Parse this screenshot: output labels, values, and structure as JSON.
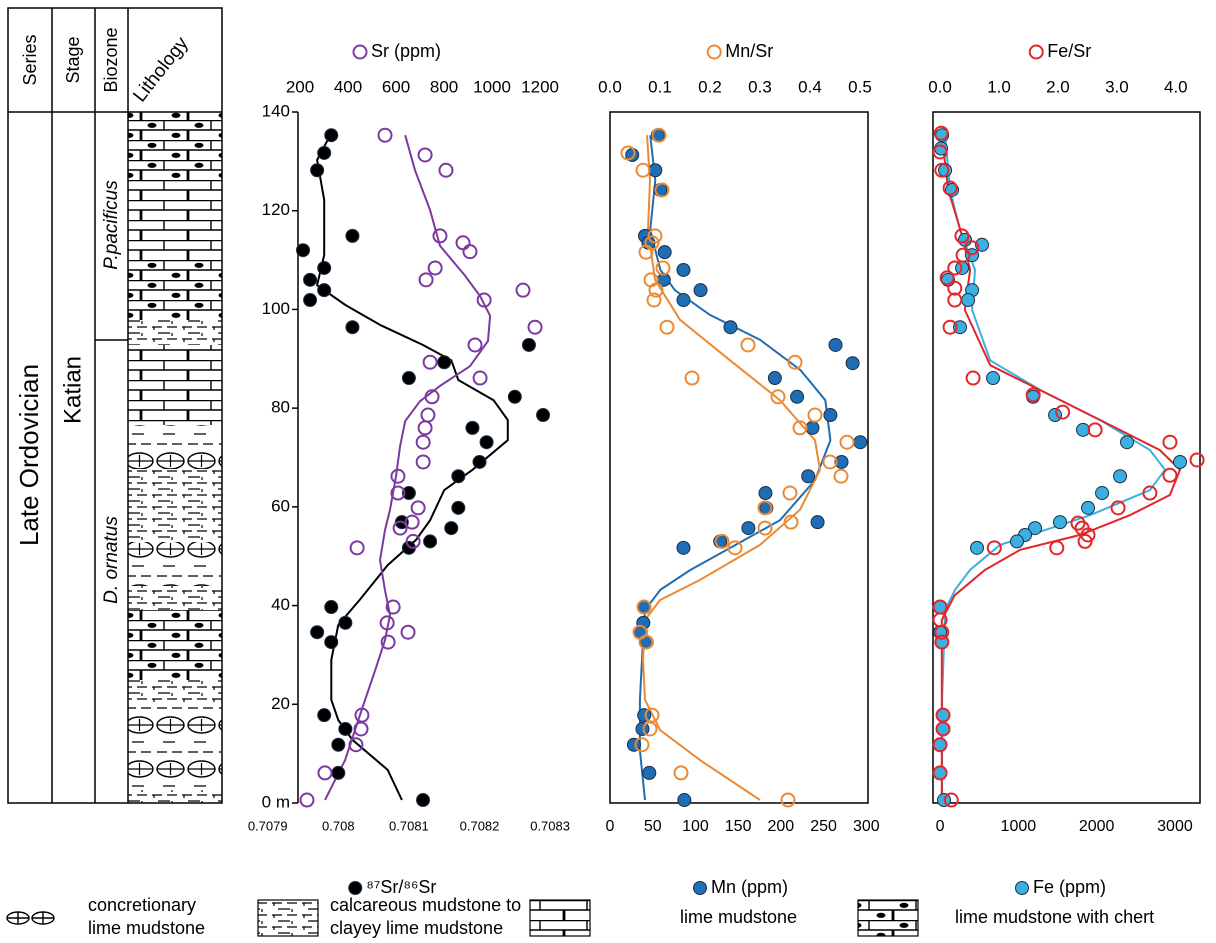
{
  "column": {
    "headers": [
      "Series",
      "Stage",
      "Biozone",
      "Lithology"
    ],
    "series": "Late Ordovician",
    "stage": "Katian",
    "biozones": [
      "P.pacificus",
      "D. ornatus"
    ]
  },
  "lithology_legend": [
    [
      "concretionary",
      "lime mudstone"
    ],
    [
      "calcareous mudstone to",
      "clayey lime mudstone"
    ],
    [
      "lime mudstone"
    ],
    [
      "lime mudstone with chert"
    ]
  ],
  "chart_data": [
    {
      "type": "scatter",
      "ylim": [
        0,
        140
      ],
      "yticks": [
        {
          "value": 0,
          "label": "0 m"
        },
        20,
        40,
        60,
        80,
        100,
        120,
        140
      ],
      "xlim": [
        0.707882,
        0.708314
      ],
      "xticks": [
        0.7079,
        0.708,
        0.7081,
        0.7082,
        0.7083
      ],
      "x2lim": [
        12.5,
        1283
      ],
      "x2ticks": [
        200,
        400,
        600,
        800,
        1000,
        1200
      ],
      "frame": false,
      "series": [
        {
          "name": "⁸⁷Sr/⁸⁶Sr",
          "color": "#000000",
          "marker": "filled",
          "x": [
            0.70799,
            0.70798,
            0.70797,
            0.70795,
            0.70802,
            0.70796,
            0.70798,
            0.70798,
            0.70796,
            0.70802,
            0.70827,
            0.70815,
            0.7081,
            0.70825,
            0.70829,
            0.70819,
            0.70821,
            0.7082,
            0.70817,
            0.7081,
            0.70817,
            0.70809,
            0.70816,
            0.70813,
            0.7081,
            0.70799,
            0.70801,
            0.70797,
            0.70799,
            0.70798,
            0.70801,
            0.708,
            0.708,
            0.70812
          ],
          "y": [
            135.3,
            131.7,
            128.2,
            112.0,
            114.9,
            106.0,
            108.4,
            103.9,
            101.9,
            96.4,
            92.8,
            89.3,
            86.1,
            82.3,
            78.6,
            76.0,
            73.1,
            69.1,
            66.2,
            62.8,
            59.8,
            56.9,
            55.7,
            53.0,
            51.7,
            39.7,
            36.5,
            34.6,
            32.6,
            17.8,
            15.0,
            11.8,
            6.1,
            0.6
          ]
        },
        {
          "color": "#000000",
          "marker": "line",
          "x": [
            0.70799,
            0.70797,
            0.70798,
            0.70798,
            0.70797,
            0.70801,
            0.70806,
            0.70812,
            0.70816,
            0.70817,
            0.70822,
            0.70824,
            0.70824,
            0.70819,
            0.70815,
            0.70813,
            0.70811,
            0.70807,
            0.70803,
            0.708,
            0.70799,
            0.70799,
            0.708,
            0.70802,
            0.70807,
            0.70809
          ],
          "y": [
            135.7,
            130.3,
            122.2,
            111.0,
            104.9,
            100.9,
            96.8,
            92.8,
            89.7,
            85.7,
            81.6,
            77.6,
            73.5,
            67.5,
            63.4,
            57.3,
            53.3,
            48.2,
            41.1,
            36.1,
            29.0,
            20.9,
            16.8,
            12.8,
            6.7,
            0.6
          ]
        },
        {
          "name": "Sr (ppm)",
          "color": "#7a3aa0",
          "axis": "x2",
          "marker": "open",
          "x": [
            554,
            721,
            808,
            783,
            879,
            908,
            763,
            725,
            967,
            1129,
            1179,
            929,
            742,
            950,
            750,
            733,
            721,
            713,
            713,
            608,
            608,
            692,
            667,
            617,
            671,
            438,
            588,
            563,
            650,
            567,
            458,
            454,
            433,
            304,
            229
          ],
          "y": [
            135.3,
            131.3,
            128.2,
            114.9,
            113.5,
            111.7,
            108.4,
            106.0,
            101.9,
            103.9,
            96.4,
            92.8,
            89.3,
            86.1,
            82.3,
            78.6,
            76.0,
            73.1,
            69.1,
            66.2,
            62.8,
            59.8,
            56.9,
            55.7,
            53.0,
            51.7,
            39.7,
            36.5,
            34.6,
            32.6,
            17.8,
            15.0,
            11.8,
            6.1,
            0.6
          ]
        },
        {
          "color": "#7a3aa0",
          "axis": "x2",
          "marker": "line",
          "x": [
            638,
            679,
            742,
            783,
            888,
            950,
            992,
            983,
            908,
            783,
            700,
            638,
            617,
            600,
            575,
            554,
            533,
            554,
            575,
            554,
            513,
            471,
            429,
            388,
            304
          ],
          "y": [
            135.3,
            128.2,
            120.1,
            112.9,
            106.8,
            102.7,
            98.7,
            93.6,
            88.5,
            84.5,
            81.4,
            77.4,
            72.3,
            66.2,
            59.4,
            55.3,
            49.2,
            43.1,
            38.1,
            33.0,
            26.9,
            20.9,
            14.8,
            8.7,
            0.6
          ]
        }
      ]
    },
    {
      "type": "scatter",
      "ylim": [
        0,
        140
      ],
      "xlim": [
        0,
        302
      ],
      "xticks": [
        0,
        50,
        100,
        150,
        200,
        250,
        300
      ],
      "x2lim": [
        0,
        0.516
      ],
      "x2ticks": [
        {
          "value": 0,
          "label": "0.0"
        },
        0.1,
        0.2,
        0.3,
        0.4,
        0.5
      ],
      "frame": true,
      "series": [
        {
          "color": "#1f6db5",
          "marker": "line",
          "x": [
            47,
            53,
            47,
            59,
            76,
            117,
            176,
            223,
            252,
            258,
            240,
            199,
            147,
            94,
            59,
            41,
            38,
            35,
            35,
            41
          ],
          "y": [
            135.3,
            126.2,
            116.1,
            108.0,
            103.9,
            98.9,
            93.8,
            87.7,
            81.6,
            73.5,
            65.4,
            57.3,
            52.3,
            47.2,
            43.2,
            39.1,
            31.0,
            20.9,
            10.7,
            0.6
          ]
        },
        {
          "color": "#ec8a34",
          "axis": "x2",
          "marker": "line",
          "x": [
            0.074,
            0.08,
            0.076,
            0.09,
            0.14,
            0.24,
            0.34,
            0.41,
            0.42,
            0.38,
            0.3,
            0.18,
            0.1,
            0.07,
            0.066,
            0.07,
            0.1,
            0.18,
            0.3
          ],
          "y": [
            135.3,
            126.2,
            116.1,
            106.0,
            97.9,
            89.7,
            81.6,
            73.5,
            67.5,
            59.4,
            52.3,
            45.2,
            41.1,
            37.1,
            29.0,
            20.9,
            14.8,
            8.7,
            0.6
          ]
        },
        {
          "name": "Mn (ppm)",
          "color": "#1f6db5",
          "marker": "filled",
          "x": [
            56,
            26,
            53,
            59,
            41,
            45,
            64,
            86,
            63,
            106,
            86,
            141,
            264,
            284,
            193,
            219,
            258,
            237,
            293,
            271,
            232,
            182,
            183,
            243,
            162,
            129,
            86,
            40,
            39,
            36,
            43,
            40,
            38,
            28,
            46,
            87
          ],
          "y": [
            135.3,
            131.3,
            128.2,
            124.2,
            114.9,
            113.5,
            111.6,
            108.0,
            106.0,
            103.9,
            101.9,
            96.4,
            92.8,
            89.1,
            86.1,
            82.3,
            78.6,
            76.0,
            73.1,
            69.1,
            66.2,
            62.8,
            59.8,
            56.9,
            55.7,
            53.0,
            51.7,
            39.7,
            36.5,
            34.6,
            32.6,
            17.8,
            15.0,
            11.8,
            6.1,
            0.6
          ]
        },
        {
          "name": "Mn/Sr",
          "color": "#ec8a34",
          "axis": "x2",
          "marker": "open",
          "x": [
            0.098,
            0.036,
            0.066,
            0.104,
            0.09,
            0.084,
            0.072,
            0.106,
            0.082,
            0.092,
            0.088,
            0.114,
            0.276,
            0.37,
            0.164,
            0.336,
            0.41,
            0.38,
            0.474,
            0.44,
            0.462,
            0.36,
            0.31,
            0.362,
            0.31,
            0.224,
            0.25,
            0.068,
            0.06,
            0.072,
            0.084,
            0.08,
            0.064,
            0.142,
            0.356
          ],
          "y": [
            135.3,
            131.7,
            128.2,
            124.2,
            114.9,
            113.5,
            111.6,
            108.4,
            106.0,
            103.9,
            101.9,
            96.4,
            92.8,
            89.3,
            86.1,
            82.3,
            78.6,
            76.0,
            73.1,
            69.1,
            66.2,
            62.8,
            59.8,
            56.9,
            55.7,
            53.0,
            51.7,
            39.7,
            34.6,
            32.6,
            17.8,
            15.0,
            11.8,
            6.1,
            0.6
          ]
        }
      ]
    },
    {
      "type": "scatter",
      "ylim": [
        0,
        140
      ],
      "xlim": [
        -90,
        3320
      ],
      "xticks": [
        0,
        1000,
        2000,
        3000
      ],
      "x2lim": [
        -0.12,
        4.41
      ],
      "x2ticks": [
        {
          "value": 0,
          "label": "0.0"
        },
        {
          "value": 1,
          "label": "1.0"
        },
        {
          "value": 2,
          "label": "2.0"
        },
        {
          "value": 3,
          "label": "3.0"
        },
        {
          "value": 4,
          "label": "4.0"
        }
      ],
      "frame": true,
      "series": [
        {
          "color": "#3bb0e0",
          "marker": "line",
          "x": [
            64,
            128,
            255,
            447,
            409,
            639,
            1277,
            2043,
            2682,
            2873,
            2682,
            1916,
            766,
            383,
            192,
            64,
            26,
            26
          ],
          "y": [
            135.3,
            124.2,
            116.1,
            108.0,
            99.9,
            89.7,
            83.7,
            77.6,
            71.5,
            67.5,
            63.4,
            58.3,
            52.3,
            47.2,
            43.2,
            39.1,
            20.9,
            0.6
          ]
        },
        {
          "color": "#e3262b",
          "axis": "x2",
          "marker": "line",
          "x": [
            0.03,
            0.14,
            0.37,
            0.51,
            0.42,
            0.85,
            1.69,
            2.88,
            3.73,
            4.07,
            3.9,
            3.22,
            2.37,
            1.36,
            0.76,
            0.25,
            0.03,
            0.03,
            0.03
          ],
          "y": [
            135.3,
            124.2,
            115.1,
            108.0,
            99.9,
            88.7,
            83.7,
            76.6,
            71.5,
            67.5,
            62.4,
            58.3,
            54.3,
            51.3,
            47.2,
            42.1,
            37.1,
            20.9,
            0.6
          ]
        },
        {
          "name": "Fe (ppm)",
          "color": "#3bb0e0",
          "marker": "filled",
          "x": [
            26,
            13,
            64,
            153,
            319,
            536,
            409,
            281,
            102,
            409,
            358,
            255,
            677,
            1188,
            1469,
            1826,
            2388,
            3065,
            2299,
            2069,
            1890,
            1532,
            1213,
            1085,
            983,
            472,
            0,
            0,
            26,
            38,
            38,
            0,
            0,
            51
          ],
          "y": [
            135.3,
            132.6,
            128.2,
            124.2,
            114.1,
            113.1,
            111.0,
            108.4,
            106.0,
            103.9,
            101.9,
            96.4,
            86.1,
            82.3,
            78.6,
            75.6,
            73.1,
            69.1,
            66.2,
            62.8,
            59.8,
            56.9,
            55.7,
            54.3,
            53.0,
            51.7,
            39.7,
            34.6,
            32.6,
            17.8,
            15.0,
            11.8,
            6.1,
            0.6
          ]
        },
        {
          "name": "Fe/Sr",
          "color": "#e3262b",
          "axis": "x2",
          "marker": "open",
          "x": [
            0.02,
            0.0,
            0.03,
            0.17,
            0.37,
            0.54,
            0.39,
            0.25,
            0.12,
            0.25,
            0.25,
            0.17,
            0.56,
            1.58,
            2.08,
            2.63,
            3.9,
            4.36,
            3.9,
            3.56,
            3.02,
            2.34,
            2.41,
            2.51,
            2.46,
            1.98,
            0.92,
            0.0,
            0.0,
            0.03,
            0.03,
            0.05,
            0.05,
            0.0,
            0.0,
            0.19
          ],
          "y": [
            135.7,
            131.9,
            128.2,
            124.6,
            114.9,
            112.5,
            111.0,
            108.4,
            106.4,
            104.3,
            101.9,
            96.4,
            86.1,
            82.7,
            79.2,
            75.6,
            73.1,
            69.5,
            66.4,
            62.8,
            59.8,
            56.7,
            55.7,
            54.3,
            53.0,
            51.7,
            51.7,
            39.7,
            37.1,
            34.6,
            32.6,
            17.8,
            15.0,
            11.8,
            6.1,
            0.6
          ]
        }
      ]
    }
  ]
}
